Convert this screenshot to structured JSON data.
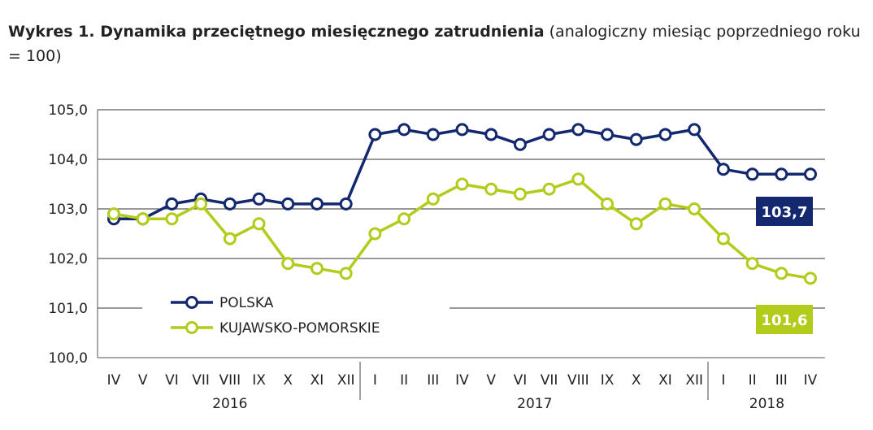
{
  "title": {
    "bold": "Wykres 1. Dynamika przeciętnego miesięcznego zatrudnienia",
    "normal": " (analogiczny miesiąc poprzedniego roku = 100)"
  },
  "chart_data": {
    "type": "line",
    "title": "Wykres 1. Dynamika przeciętnego miesięcznego zatrudnienia (analogiczny miesiąc poprzedniego roku = 100)",
    "categories": [
      "IV",
      "V",
      "VI",
      "VII",
      "VIII",
      "IX",
      "X",
      "XI",
      "XII",
      "I",
      "II",
      "III",
      "IV",
      "V",
      "VI",
      "VII",
      "VIII",
      "IX",
      "X",
      "XI",
      "XII",
      "I",
      "II",
      "III",
      "IV"
    ],
    "years": [
      {
        "label": "2016",
        "from": 0,
        "to": 8
      },
      {
        "label": "2017",
        "from": 9,
        "to": 20
      },
      {
        "label": "2018",
        "from": 21,
        "to": 24
      }
    ],
    "ylim": [
      100,
      105
    ],
    "yticks": [
      "100,0",
      "101,0",
      "102,0",
      "103,0",
      "104,0",
      "105,0"
    ],
    "grid": true,
    "legend_position": "bottom-left",
    "series": [
      {
        "name": "POLSKA",
        "color": "#13286e",
        "values": [
          102.8,
          102.8,
          103.1,
          103.2,
          103.1,
          103.2,
          103.1,
          103.1,
          103.1,
          104.5,
          104.6,
          104.5,
          104.6,
          104.5,
          104.3,
          104.5,
          104.6,
          104.5,
          104.4,
          104.5,
          104.6,
          103.8,
          103.7,
          103.7,
          103.7
        ],
        "end_label": "103,7"
      },
      {
        "name": "KUJAWSKO-POMORSKIE",
        "color": "#b3cb1a",
        "values": [
          102.9,
          102.8,
          102.8,
          103.1,
          102.4,
          102.7,
          101.9,
          101.8,
          101.7,
          102.5,
          102.8,
          103.2,
          103.5,
          103.4,
          103.3,
          103.4,
          103.6,
          103.1,
          102.7,
          103.1,
          103.0,
          102.4,
          101.9,
          101.7,
          101.6
        ],
        "end_label": "101,6"
      }
    ]
  }
}
